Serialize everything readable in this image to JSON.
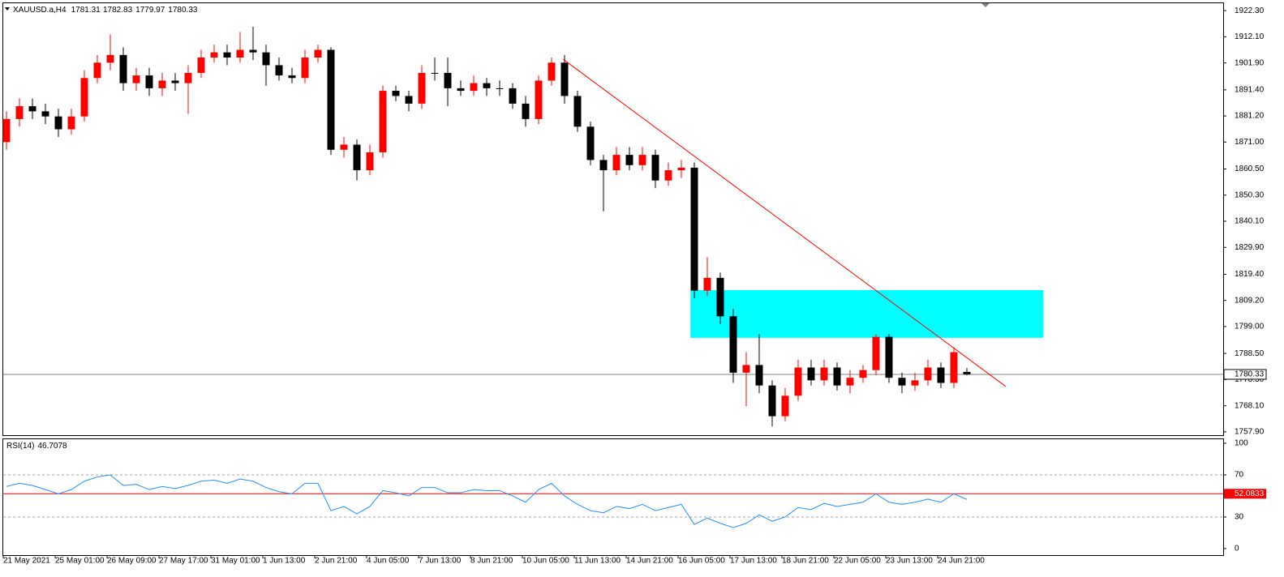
{
  "chart_data": {
    "type": "candlestick",
    "symbol": "XAUUSD.a,H4",
    "categories": [
      "21 May 2021",
      null,
      null,
      null,
      "25 May 01:00",
      null,
      null,
      null,
      "26 May 09:00",
      null,
      null,
      null,
      "27 May 17:00",
      null,
      null,
      null,
      "31 May 01:00",
      null,
      null,
      null,
      "1 Jun 13:00",
      null,
      null,
      null,
      "2 Jun 21:00",
      null,
      null,
      null,
      "4 Jun 05:00",
      null,
      null,
      null,
      "7 Jun 13:00",
      null,
      null,
      null,
      "8 Jun 21:00",
      null,
      null,
      null,
      "10 Jun 05:00",
      null,
      null,
      null,
      "11 Jun 13:00",
      null,
      null,
      null,
      "14 Jun 21:00",
      null,
      null,
      null,
      "16 Jun 05:00",
      null,
      null,
      null,
      "17 Jun 13:00",
      null,
      null,
      null,
      "18 Jun 21:00",
      null,
      null,
      null,
      "22 Jun 05:00",
      null,
      null,
      null,
      "23 Jun 13:00",
      null,
      null,
      null,
      "24 Jun 21:00",
      null,
      null
    ],
    "open": [
      1871,
      1880,
      1885,
      1883,
      1881,
      1876,
      1881,
      1896,
      1902,
      1905,
      1894,
      1897,
      1892,
      1895,
      1894,
      1898,
      1904,
      1906,
      1904,
      1907,
      1906,
      1901,
      1897,
      1896,
      1904,
      1907,
      1868,
      1870,
      1860,
      1867,
      1891,
      1889,
      1886,
      1898,
      1898,
      1892,
      1891,
      1894,
      1892,
      1892,
      1886,
      1880,
      1895,
      1902,
      1889,
      1877,
      1864,
      1860,
      1866,
      1862,
      1866,
      1856,
      1860,
      1861,
      1813,
      1818,
      1803,
      1781,
      1784,
      1776,
      1764,
      1772,
      1783,
      1778,
      1783,
      1776,
      1779,
      1782,
      1795,
      1779,
      1776,
      1778,
      1783,
      1777,
      1781.31
    ],
    "high": [
      1883,
      1888,
      1888,
      1886,
      1884,
      1884,
      1899,
      1905,
      1913,
      1908,
      1900,
      1900,
      1898,
      1898,
      1901,
      1907,
      1909,
      1909,
      1914,
      1916,
      1909,
      1904,
      1900,
      1907,
      1909,
      1908,
      1873,
      1872,
      1870,
      1893,
      1893,
      1891,
      1901,
      1904,
      1904,
      1895,
      1897,
      1896,
      1895,
      1894,
      1889,
      1897,
      1904,
      1905,
      1891,
      1879,
      1866,
      1869,
      1869,
      1869,
      1868,
      1863,
      1864,
      1863,
      1826,
      1820,
      1806,
      1789,
      1796,
      1778,
      1775,
      1786,
      1786,
      1786,
      1785,
      1782,
      1784,
      1796,
      1796,
      1781,
      1781,
      1786,
      1785,
      1791,
      1782.83
    ],
    "low": [
      1868,
      1877,
      1880,
      1878,
      1873,
      1874,
      1879,
      1894,
      1899,
      1891,
      1891,
      1889,
      1889,
      1891,
      1882,
      1896,
      1902,
      1901,
      1902,
      1903,
      1893,
      1895,
      1894,
      1894,
      1902,
      1866,
      1865,
      1856,
      1858,
      1865,
      1887,
      1883,
      1884,
      1895,
      1885,
      1889,
      1889,
      1889,
      1889,
      1884,
      1877,
      1878,
      1893,
      1886,
      1875,
      1862,
      1844,
      1858,
      1860,
      1860,
      1853,
      1854,
      1857,
      1810,
      1811,
      1800,
      1777,
      1768,
      1773,
      1760,
      1762,
      1770,
      1776,
      1776,
      1774,
      1773,
      1777,
      1780,
      1777,
      1773,
      1774,
      1776,
      1775,
      1775,
      1779.97
    ],
    "close": [
      1880,
      1885,
      1883,
      1881,
      1876,
      1881,
      1896,
      1902,
      1905,
      1894,
      1897,
      1892,
      1895,
      1894,
      1898,
      1904,
      1906,
      1904,
      1907,
      1906,
      1901,
      1897,
      1896,
      1904,
      1907,
      1868,
      1870,
      1860,
      1867,
      1891,
      1889,
      1886,
      1898,
      1898,
      1892,
      1891,
      1894,
      1892,
      1892,
      1886,
      1880,
      1895,
      1902,
      1889,
      1877,
      1864,
      1860,
      1866,
      1862,
      1866,
      1856,
      1860,
      1861,
      1813,
      1818,
      1803,
      1781,
      1784,
      1776,
      1764,
      1772,
      1783,
      1778,
      1783,
      1776,
      1779,
      1782,
      1795,
      1779,
      1776,
      1778,
      1783,
      1777,
      1789,
      1780.33
    ],
    "bull_color": "#ff0000",
    "bear_color": "#000000",
    "ylim": [
      1756.6,
      1925.5
    ],
    "yticks": [
      {
        "value": 1922.3,
        "label": "1922.30"
      },
      {
        "value": 1912.1,
        "label": "1912.10"
      },
      {
        "value": 1901.9,
        "label": "1901.90"
      },
      {
        "value": 1891.4,
        "label": "1891.40"
      },
      {
        "value": 1881.2,
        "label": "1881.20"
      },
      {
        "value": 1871,
        "label": "1871.00"
      },
      {
        "value": 1860.5,
        "label": "1860.50"
      },
      {
        "value": 1850.3,
        "label": "1850.30"
      },
      {
        "value": 1840.1,
        "label": "1840.10"
      },
      {
        "value": 1829.9,
        "label": "1829.90"
      },
      {
        "value": 1819.4,
        "label": "1819.40"
      },
      {
        "value": 1809.2,
        "label": "1809.20"
      },
      {
        "value": 1799,
        "label": "1799.00"
      },
      {
        "value": 1788.5,
        "label": "1788.50"
      },
      {
        "value": 1778.3,
        "label": "1778.30"
      },
      {
        "value": 1768.1,
        "label": "1768.10"
      },
      {
        "value": 1757.9,
        "label": "1757.90"
      }
    ],
    "trendline": {
      "x": [
        42.9,
        77
      ],
      "y": [
        1903.3,
        1775.6
      ],
      "color": "#ff0000"
    },
    "zone": {
      "x": [
        52.7,
        79.9
      ],
      "y": [
        1794.6,
        1813.2
      ],
      "color": "#00ffff"
    },
    "rsi": {
      "name": "RSI(14)",
      "values": [
        59,
        62,
        60,
        56,
        52,
        56,
        64,
        68,
        70,
        60,
        61,
        56,
        59,
        57,
        60,
        64,
        65,
        62,
        66,
        64,
        58,
        54,
        52,
        62,
        62,
        36,
        40,
        33,
        40,
        55,
        53,
        50,
        58,
        58,
        53,
        53,
        56,
        55,
        55,
        50,
        44,
        56,
        62,
        50,
        42,
        36,
        34,
        40,
        38,
        42,
        36,
        39,
        42,
        23,
        29,
        24,
        20,
        24,
        32,
        26,
        30,
        39,
        37,
        43,
        40,
        42,
        44,
        52,
        44,
        42,
        44,
        47,
        44,
        52,
        46.7078
      ],
      "color": "#1e90ff",
      "ylim": [
        -6.2,
        104.6
      ],
      "yticks": [
        100,
        70,
        30,
        0
      ],
      "level": 52.0833,
      "level_color": "#ff0000"
    }
  }
}
